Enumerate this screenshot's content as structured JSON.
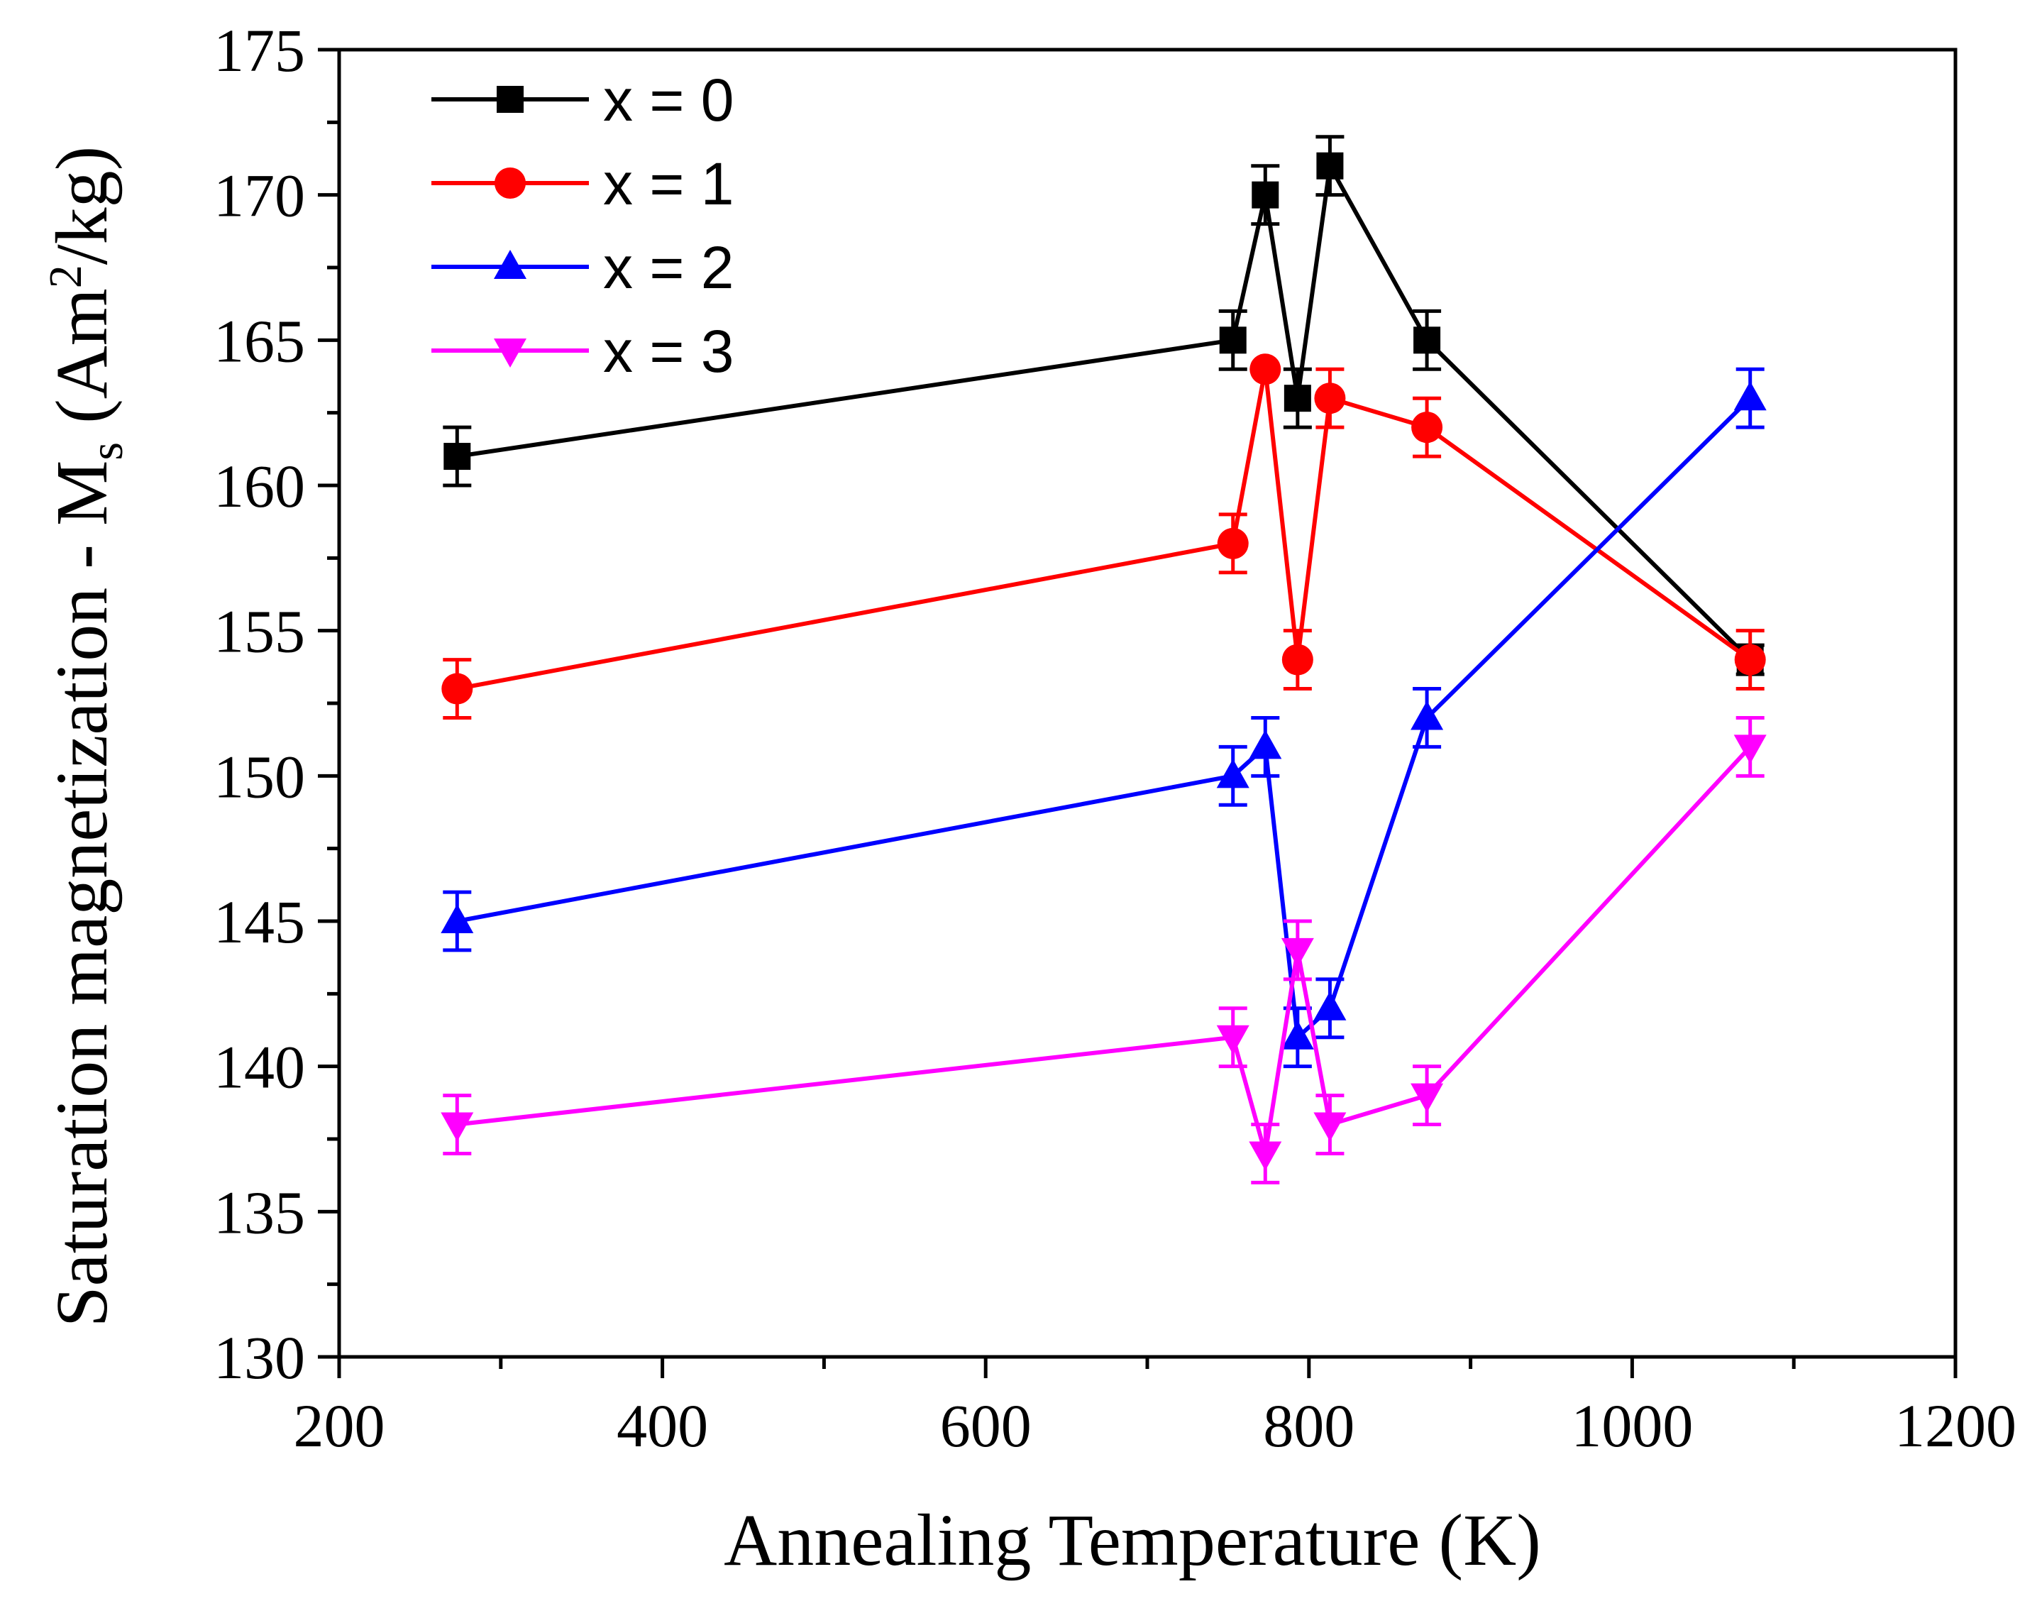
{
  "chart_data": {
    "type": "line",
    "title": "",
    "xlabel": "Annealing Temperature (K)",
    "ylabel": {
      "main": "Saturation magnetization - M",
      "subscript": "s",
      "unit_open": " (Am",
      "unit_sup": "2",
      "unit_close": "/kg)"
    },
    "xlim": [
      200,
      1200
    ],
    "ylim": [
      130,
      175
    ],
    "xticks": [
      200,
      400,
      600,
      800,
      1000,
      1200
    ],
    "yticks": [
      130,
      135,
      140,
      145,
      150,
      155,
      160,
      165,
      170,
      175
    ],
    "legend_position": "top-left",
    "x": [
      273,
      753,
      773,
      793,
      813,
      873,
      1073
    ],
    "series": [
      {
        "name": "x = 0",
        "color": "#000000",
        "marker": "square",
        "values": [
          161,
          165,
          170,
          163,
          171,
          165,
          154
        ],
        "error": [
          1,
          1,
          1,
          1,
          1,
          1,
          0.5
        ]
      },
      {
        "name": "x = 1",
        "color": "#ff0000",
        "marker": "circle",
        "values": [
          153,
          158,
          164,
          154,
          163,
          162,
          154
        ],
        "error": [
          1,
          1,
          0,
          1,
          1,
          1,
          1
        ]
      },
      {
        "name": "x = 2",
        "color": "#0000ff",
        "marker": "triangle-up",
        "values": [
          145,
          150,
          151,
          141,
          142,
          152,
          163
        ],
        "error": [
          1,
          1,
          1,
          1,
          1,
          1,
          1
        ]
      },
      {
        "name": "x = 3",
        "color": "#ff00ff",
        "marker": "triangle-down",
        "values": [
          138,
          141,
          137,
          144,
          138,
          139,
          151
        ],
        "error": [
          1,
          1,
          1,
          1,
          1,
          1,
          1
        ]
      }
    ]
  }
}
